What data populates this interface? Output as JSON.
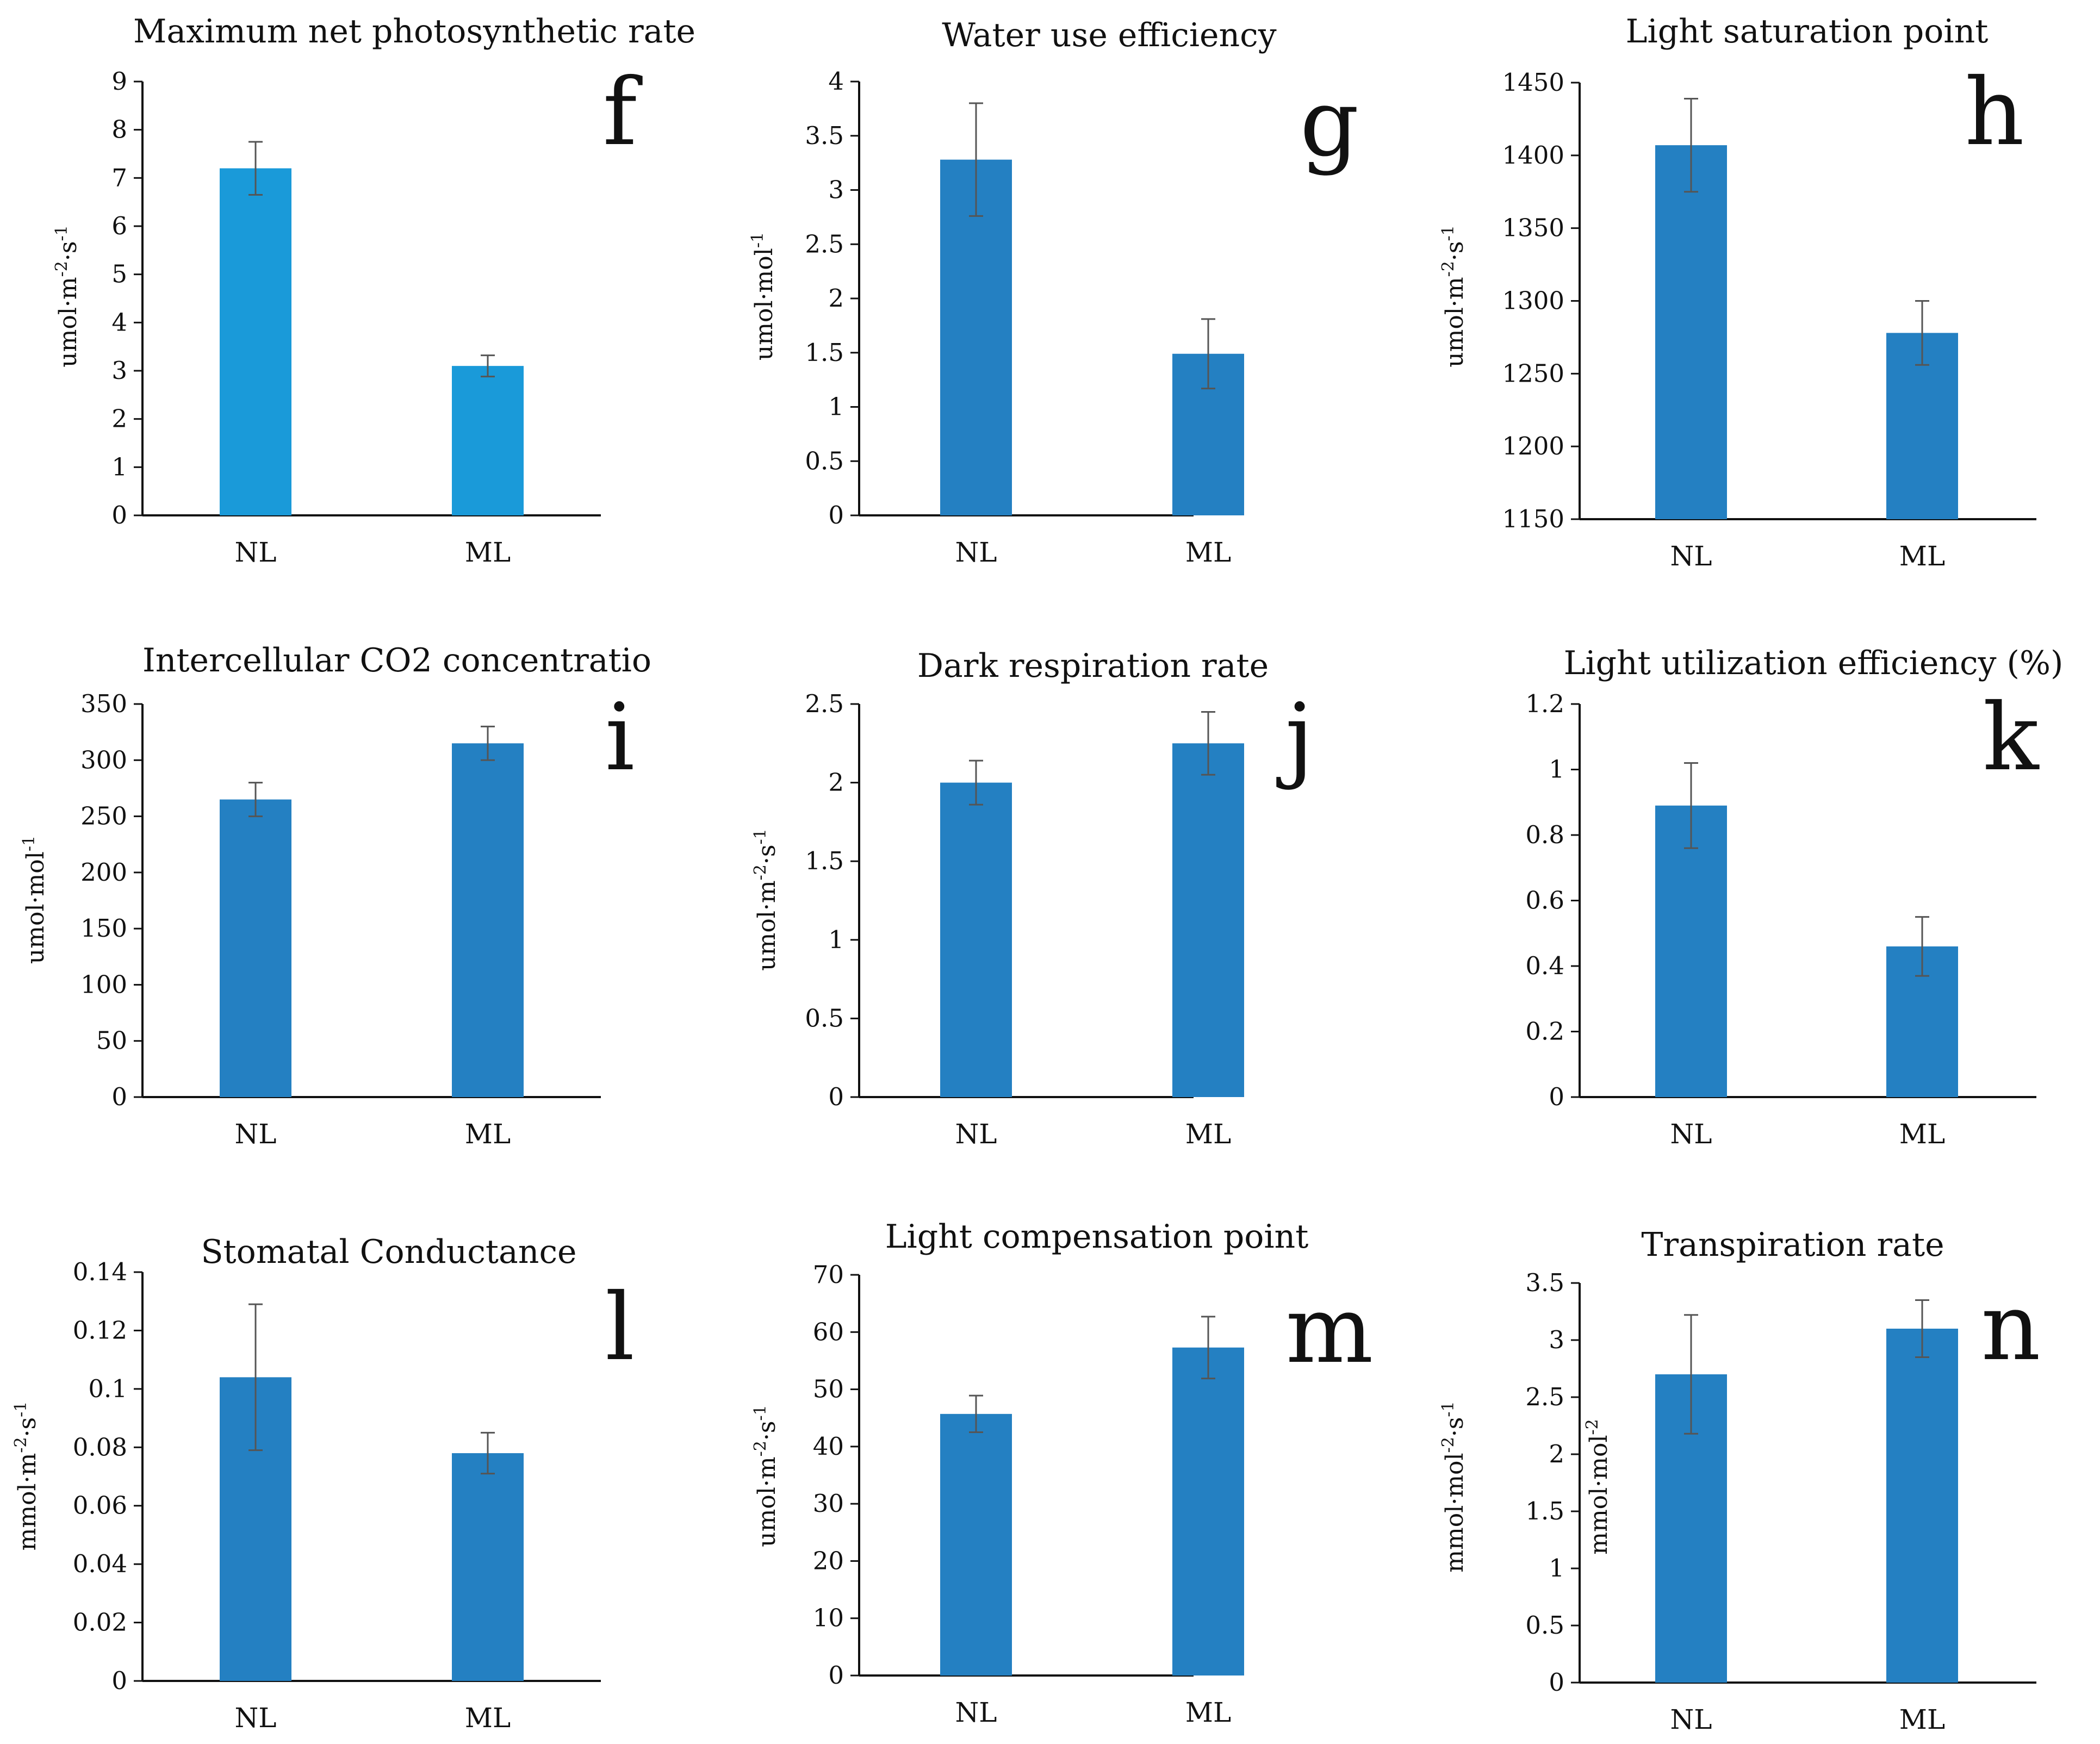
{
  "figure": {
    "background": "#ffffff",
    "bar_color": "#2480c2",
    "bar_color_f": "#1a9ad9",
    "axis_color": "#111111",
    "errorbar_color": "#555555"
  },
  "chart_data": [
    {
      "type": "bar",
      "panel": "f",
      "title": "Maximum net photosynthetic rate",
      "ylabel": "umol·m-2·s-1",
      "categories": [
        "NL",
        "ML"
      ],
      "values": [
        7.2,
        3.1
      ],
      "errors": [
        0.55,
        0.22
      ],
      "ylim": [
        0,
        9
      ],
      "yticks": [
        0,
        1,
        2,
        3,
        4,
        5,
        6,
        7,
        8,
        9
      ],
      "ytick_labels": [
        "0",
        "1",
        "2",
        "3",
        "4",
        "5",
        "6",
        "7",
        "8",
        "9"
      ],
      "color": "#1a9ad9"
    },
    {
      "type": "bar",
      "panel": "g",
      "title": "Water use efficiency",
      "ylabel": "umol·mol-1",
      "categories": [
        "NL",
        "ML"
      ],
      "values": [
        3.28,
        1.49
      ],
      "errors": [
        0.52,
        0.32
      ],
      "ylim": [
        0,
        4
      ],
      "yticks": [
        0,
        0.5,
        1,
        1.5,
        2,
        2.5,
        3,
        3.5,
        4
      ],
      "ytick_labels": [
        "0",
        "0.5",
        "1",
        "1.5",
        "2",
        "2.5",
        "3",
        "3.5",
        "4"
      ],
      "color": "#2480c2"
    },
    {
      "type": "bar",
      "panel": "h",
      "title": "Light saturation point",
      "ylabel": "umol·m-2·s-1",
      "categories": [
        "NL",
        "ML"
      ],
      "values": [
        1407,
        1278
      ],
      "errors": [
        32,
        22
      ],
      "ylim": [
        1150,
        1450
      ],
      "yticks": [
        1150,
        1200,
        1250,
        1300,
        1350,
        1400,
        1450
      ],
      "ytick_labels": [
        "1150",
        "1200",
        "1250",
        "1300",
        "1350",
        "1400",
        "1450"
      ],
      "color": "#2480c2"
    },
    {
      "type": "bar",
      "panel": "i",
      "title": "Intercellular CO2 concentratio",
      "ylabel": "umol·mol-1",
      "categories": [
        "NL",
        "ML"
      ],
      "values": [
        265,
        315
      ],
      "errors": [
        15,
        15
      ],
      "ylim": [
        0,
        350
      ],
      "yticks": [
        0,
        50,
        100,
        150,
        200,
        250,
        300,
        350
      ],
      "ytick_labels": [
        "0",
        "50",
        "100",
        "150",
        "200",
        "250",
        "300",
        "350"
      ],
      "color": "#2480c2"
    },
    {
      "type": "bar",
      "panel": "j",
      "title": "Dark respiration rate",
      "ylabel": "umol·m-2·s-1",
      "categories": [
        "NL",
        "ML"
      ],
      "values": [
        2.0,
        2.25
      ],
      "errors": [
        0.14,
        0.2
      ],
      "ylim": [
        0,
        2.5
      ],
      "yticks": [
        0,
        0.5,
        1,
        1.5,
        2,
        2.5
      ],
      "ytick_labels": [
        "0",
        "0.5",
        "1",
        "1.5",
        "2",
        "2.5"
      ],
      "color": "#2480c2"
    },
    {
      "type": "bar",
      "panel": "k",
      "title": "Light utilization efficiency (%)",
      "ylabel": "",
      "categories": [
        "NL",
        "ML"
      ],
      "values": [
        0.89,
        0.46
      ],
      "errors": [
        0.13,
        0.09
      ],
      "ylim": [
        0,
        1.2
      ],
      "yticks": [
        0,
        0.2,
        0.4,
        0.6,
        0.8,
        1,
        1.2
      ],
      "ytick_labels": [
        "0",
        "0.2",
        "0.4",
        "0.6",
        "0.8",
        "1",
        "1.2"
      ],
      "color": "#2480c2"
    },
    {
      "type": "bar",
      "panel": "l",
      "title": "Stomatal Conductance",
      "ylabel": "mmol·m-2·s-1",
      "categories": [
        "NL",
        "ML"
      ],
      "values": [
        0.104,
        0.078
      ],
      "errors": [
        0.025,
        0.007
      ],
      "ylim": [
        0,
        0.14
      ],
      "yticks": [
        0,
        0.02,
        0.04,
        0.06,
        0.08,
        0.1,
        0.12,
        0.14
      ],
      "ytick_labels": [
        "0",
        "0.02",
        "0.04",
        "0.06",
        "0.08",
        "0.1",
        "0.12",
        "0.14"
      ],
      "color": "#2480c2"
    },
    {
      "type": "bar",
      "panel": "m",
      "title": "Light compensation point",
      "ylabel": "umol·m-2·s-1",
      "categories": [
        "NL",
        "ML"
      ],
      "values": [
        45.7,
        57.3
      ],
      "errors": [
        3.2,
        5.4
      ],
      "ylim": [
        0,
        70
      ],
      "yticks": [
        0,
        10,
        20,
        30,
        40,
        50,
        60,
        70
      ],
      "ytick_labels": [
        "0",
        "10",
        "20",
        "30",
        "40",
        "50",
        "60",
        "70"
      ],
      "color": "#2480c2"
    },
    {
      "type": "bar",
      "panel": "n",
      "title": "Transpiration rate",
      "ylabel": "mmol·mol-2·s-1",
      "ylabel2": "mmol·mol-2",
      "categories": [
        "NL",
        "ML"
      ],
      "values": [
        2.7,
        3.1
      ],
      "errors": [
        0.52,
        0.25
      ],
      "ylim": [
        0,
        3.5
      ],
      "yticks": [
        0,
        0.5,
        1,
        1.5,
        2,
        2.5,
        3,
        3.5
      ],
      "ytick_labels": [
        "0",
        "0.5",
        "1",
        "1.5",
        "2",
        "2.5",
        "3",
        "3.5"
      ],
      "color": "#2480c2"
    }
  ]
}
